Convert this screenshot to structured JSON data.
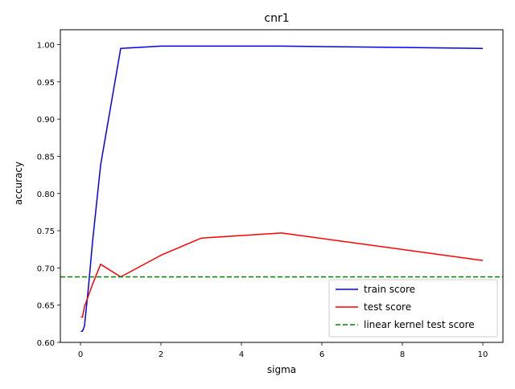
{
  "chart_data": {
    "type": "line",
    "title": "cnr1",
    "xlabel": "sigma",
    "ylabel": "accuracy",
    "xlim": [
      -0.5,
      10.5
    ],
    "ylim": [
      0.6,
      1.02
    ],
    "xticks": [
      0,
      2,
      4,
      6,
      8,
      10
    ],
    "xtick_labels": [
      "0",
      "2",
      "4",
      "6",
      "8",
      "10"
    ],
    "yticks": [
      0.6,
      0.65,
      0.7,
      0.75,
      0.8,
      0.85,
      0.9,
      0.95,
      1.0
    ],
    "ytick_labels": [
      "0.60",
      "0.65",
      "0.70",
      "0.75",
      "0.80",
      "0.85",
      "0.90",
      "0.95",
      "1.00"
    ],
    "grid": false,
    "legend_position": "lower-right",
    "series": [
      {
        "name": "train score",
        "color": "#0000ff",
        "style": "solid",
        "x": [
          0.01,
          0.05,
          0.1,
          0.2,
          0.3,
          0.5,
          1,
          2,
          3,
          5,
          10
        ],
        "y": [
          0.615,
          0.615,
          0.622,
          0.675,
          0.735,
          0.838,
          0.995,
          0.998,
          0.998,
          0.998,
          0.995
        ]
      },
      {
        "name": "test score",
        "color": "#ff0000",
        "style": "solid",
        "x": [
          0.01,
          0.05,
          0.1,
          0.2,
          0.3,
          0.5,
          1,
          2,
          3,
          5,
          10
        ],
        "y": [
          0.634,
          0.634,
          0.648,
          0.663,
          0.678,
          0.705,
          0.688,
          0.717,
          0.74,
          0.747,
          0.71
        ]
      },
      {
        "name": "linear kernel test score",
        "color": "#008000",
        "style": "dashed",
        "type": "hline",
        "y": 0.688
      }
    ]
  }
}
